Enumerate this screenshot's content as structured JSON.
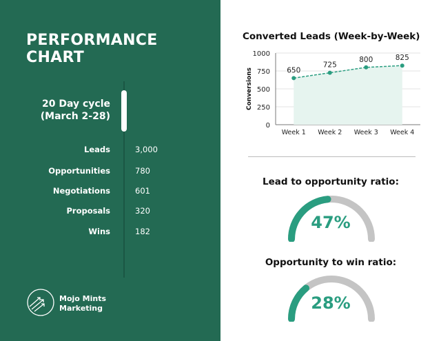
{
  "left": {
    "title_line1": "PERFORMANCE",
    "title_line2": "CHART",
    "cycle_line1": "20 Day cycle",
    "cycle_line2": "(March 2-28)",
    "metrics": [
      {
        "label": "Leads",
        "value": "3,000"
      },
      {
        "label": "Opportunities",
        "value": "780"
      },
      {
        "label": "Negotiations",
        "value": "601"
      },
      {
        "label": "Proposals",
        "value": "320"
      },
      {
        "label": "Wins",
        "value": "182"
      }
    ],
    "brand_line1": "Mojo Mints",
    "brand_line2": "Marketing",
    "logo_icon": "arrows-circle-icon"
  },
  "colors": {
    "panel": "#236a53",
    "accent": "#2a9d80",
    "gauge_track": "#c4c4c4",
    "area_fill": "#e6f4ef"
  },
  "chart_data": {
    "type": "line",
    "title": "Converted Leads (Week-by-Week)",
    "xlabel": "",
    "ylabel": "Conversions",
    "categories": [
      "Week 1",
      "Week 2",
      "Week 3",
      "Week 4"
    ],
    "values": [
      650,
      725,
      800,
      825
    ],
    "ylim": [
      0,
      1000
    ],
    "yticks": [
      0,
      250,
      500,
      750,
      1000
    ],
    "grid": true,
    "line_style": "dashed",
    "area_fill": true
  },
  "ratios": [
    {
      "title": "Lead to opportunity ratio:",
      "value": "47%",
      "fraction": 0.47
    },
    {
      "title": "Opportunity to win ratio:",
      "value": "28%",
      "fraction": 0.28
    }
  ]
}
